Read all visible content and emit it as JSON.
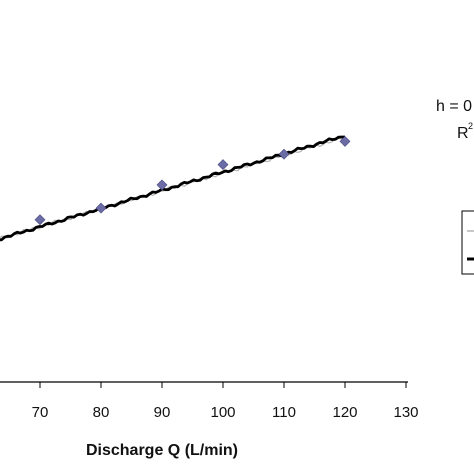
{
  "chart_data": {
    "type": "scatter",
    "title": "",
    "xlabel": "Discharge Q (L/min)",
    "ylabel": "",
    "xlim": [
      60,
      130
    ],
    "x_ticks": [
      70,
      80,
      90,
      100,
      110,
      120,
      130
    ],
    "grid": false,
    "series": [
      {
        "kind": "markers",
        "marker": "diamond",
        "color": "#6b6ba6",
        "x": [
          70,
          80,
          90,
          100,
          110,
          120
        ],
        "y": [
          0.585,
          0.605,
          0.645,
          0.68,
          0.698,
          0.72
        ]
      },
      {
        "kind": "fit-line",
        "color": "#000000",
        "x": [
          58,
          120
        ],
        "y": [
          0.535,
          0.73
        ]
      },
      {
        "kind": "trend-line",
        "color": "#b5b5b5",
        "x": [
          58,
          120
        ],
        "y": [
          0.536,
          0.727
        ]
      }
    ],
    "annotations": {
      "equation": "h = 0",
      "r_squared": "R"
    }
  },
  "colors": {
    "fit_line": "#000000",
    "trend_line": "#b5b5b5",
    "marker": "#6b6ba6",
    "axis": "#000000"
  }
}
